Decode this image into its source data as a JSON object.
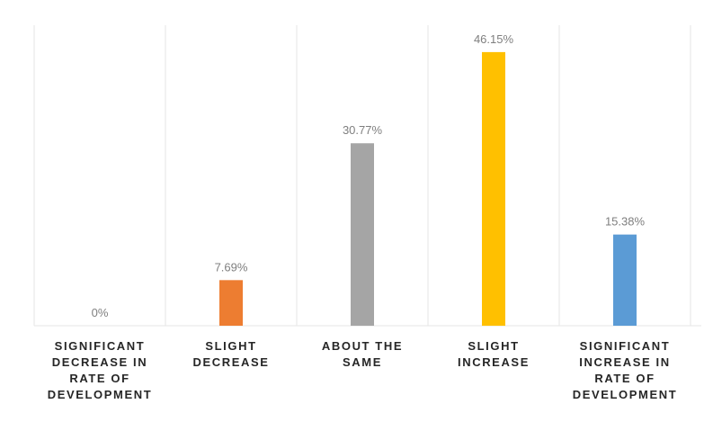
{
  "chart_data": {
    "type": "bar",
    "categories": [
      "SIGNIFICANT DECREASE IN RATE OF DEVELOPMENT",
      "SLIGHT DECREASE",
      "ABOUT THE SAME",
      "SLIGHT INCREASE",
      "SIGNIFICANT INCREASE IN RATE OF DEVELOPMENT"
    ],
    "category_lines": [
      [
        "SIGNIFICANT",
        "DECREASE IN",
        "RATE OF",
        "DEVELOPMENT"
      ],
      [
        "SLIGHT",
        "DECREASE"
      ],
      [
        "ABOUT THE",
        "SAME"
      ],
      [
        "SLIGHT",
        "INCREASE"
      ],
      [
        "SIGNIFICANT",
        "INCREASE IN",
        "RATE OF",
        "DEVELOPMENT"
      ]
    ],
    "values": [
      0,
      7.69,
      30.77,
      46.15,
      15.38
    ],
    "data_labels": [
      "0%",
      "7.69%",
      "30.77%",
      "46.15%",
      "15.38%"
    ],
    "colors": [
      "#4472C4",
      "#ED7D31",
      "#A5A5A5",
      "#FFC000",
      "#5B9BD5"
    ],
    "ylim": [
      0,
      50
    ],
    "grid": true,
    "legend": "none",
    "title": "",
    "xlabel": "",
    "ylabel": ""
  }
}
